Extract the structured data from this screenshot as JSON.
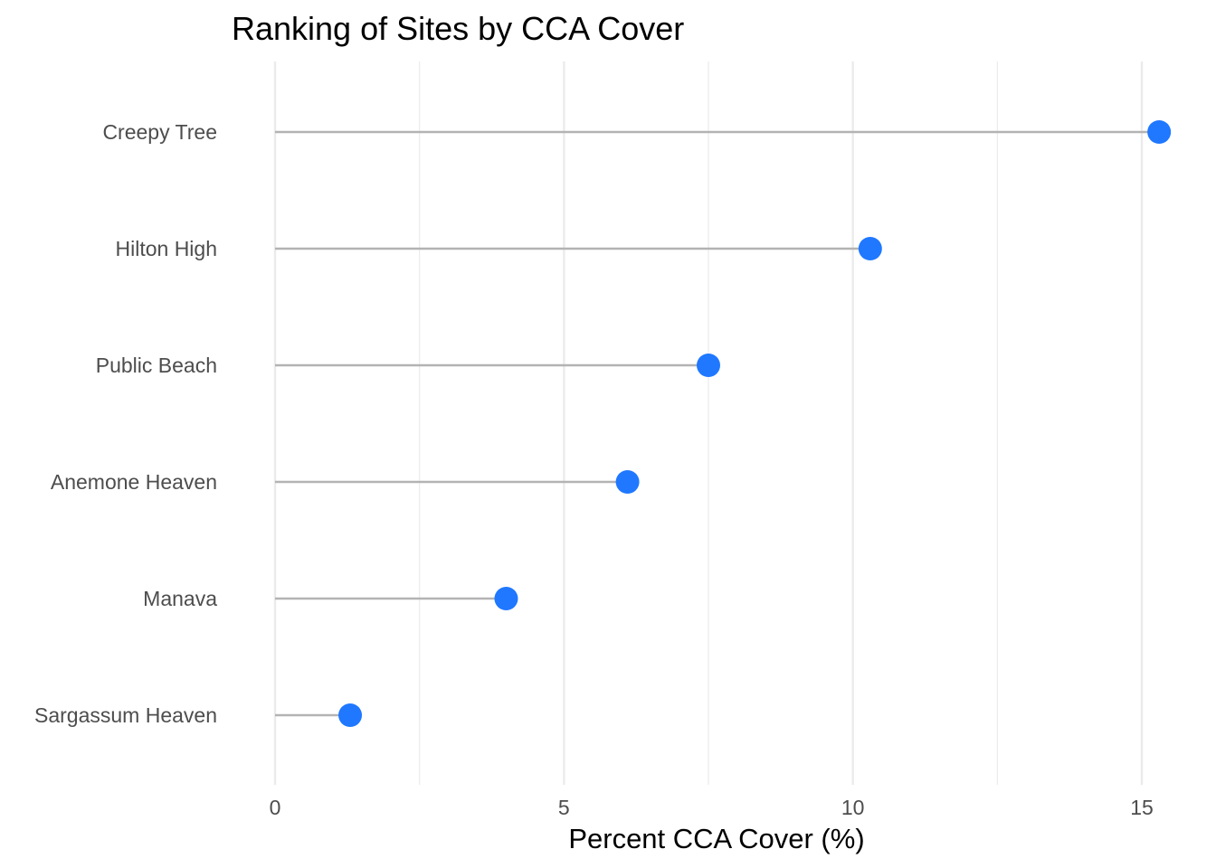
{
  "chart_data": {
    "type": "lollipop",
    "title": "Ranking of Sites by CCA Cover",
    "xlabel": "Percent CCA Cover (%)",
    "ylabel": "",
    "categories": [
      "Creepy Tree",
      "Hilton High",
      "Public Beach",
      "Anemone Heaven",
      "Manava",
      "Sargassum Heaven"
    ],
    "values": [
      15.3,
      10.3,
      7.5,
      6.1,
      4.0,
      1.3
    ],
    "xlim": [
      0,
      15.3
    ],
    "xticks": [
      0,
      5,
      10,
      15
    ],
    "xtick_labels": [
      "0",
      "5",
      "10",
      "15"
    ],
    "grid": true,
    "legend": "none",
    "colors": {
      "point": "#1f78ff",
      "segment": "#b3b3b3",
      "grid": "#ebebeb",
      "tick_text": "#4d4d4d"
    }
  }
}
